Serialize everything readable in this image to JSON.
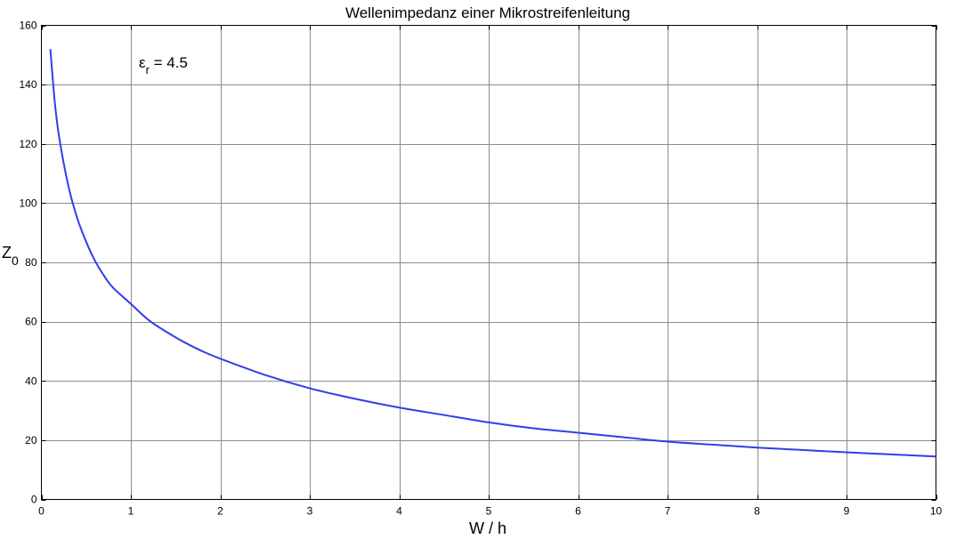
{
  "chart_data": {
    "type": "line",
    "title": "Wellenimpedanz einer Mikrostreifenleitung",
    "xlabel_main": "W / h",
    "ylabel_main": "Z",
    "ylabel_sub": "0",
    "annotation": {
      "symbol": "ε",
      "sub": "r",
      "rest": " = 4.5"
    },
    "xlim": [
      0,
      10
    ],
    "ylim": [
      0,
      160
    ],
    "xticks": [
      0,
      1,
      2,
      3,
      4,
      5,
      6,
      7,
      8,
      9,
      10
    ],
    "yticks": [
      0,
      20,
      40,
      60,
      80,
      100,
      120,
      140,
      160
    ],
    "grid": true,
    "line_color": "#2f3fe8",
    "series": [
      {
        "x": [
          0.1,
          0.15,
          0.2,
          0.3,
          0.4,
          0.5,
          0.6,
          0.7,
          0.8,
          1.0,
          1.2,
          1.4,
          1.6,
          1.8,
          2.0,
          2.5,
          3.0,
          3.5,
          4.0,
          4.5,
          5.0,
          5.5,
          6.0,
          6.5,
          7.0,
          7.5,
          8.0,
          8.5,
          9.0,
          9.5,
          10.0
        ],
        "y": [
          152,
          134,
          122,
          106,
          95,
          87,
          80.5,
          75.5,
          71.5,
          66,
          60.5,
          56.5,
          53,
          50,
          47.5,
          42,
          37.5,
          34,
          31,
          28.5,
          26,
          24,
          22.5,
          21,
          19.5,
          18.5,
          17.5,
          16.7,
          15.9,
          15.2,
          14.5
        ]
      }
    ]
  }
}
